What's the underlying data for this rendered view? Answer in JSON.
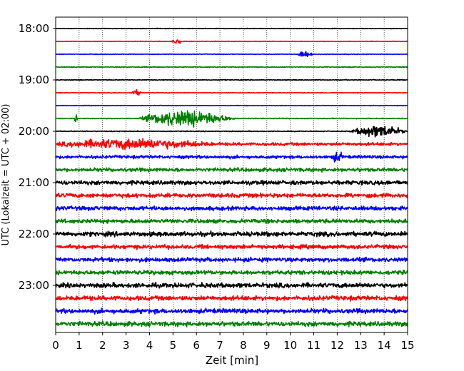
{
  "chart_data": {
    "type": "line",
    "title": "",
    "xlabel": "Zeit  [min]",
    "ylabel": "UTC (Lokalzeit = UTC + 02:00)",
    "xlim": [
      0,
      15
    ],
    "x_ticks": [
      "0",
      "1",
      "2",
      "3",
      "4",
      "5",
      "6",
      "7",
      "8",
      "9",
      "10",
      "11",
      "12",
      "13",
      "14",
      "15"
    ],
    "y_ticks": [
      "18:00",
      "19:00",
      "20:00",
      "21:00",
      "22:00",
      "23:00"
    ],
    "y_tick_rows": [
      0,
      4,
      8,
      12,
      16,
      20
    ],
    "grid": "vertical dotted at each minute",
    "legend": "none",
    "row_minutes": 15,
    "trace_colors": [
      "#000000",
      "#ff0000",
      "#0000ff",
      "#008000"
    ],
    "series": [
      {
        "start": "18:00",
        "color": "#000000",
        "noise": 0.6,
        "events": []
      },
      {
        "start": "18:15",
        "color": "#ff0000",
        "noise": 0.6,
        "events": [
          {
            "t": 4.9,
            "amp": 5,
            "dur": 0.5
          }
        ]
      },
      {
        "start": "18:30",
        "color": "#0000ff",
        "noise": 0.6,
        "events": [
          {
            "t": 10.3,
            "amp": 8,
            "dur": 0.7
          }
        ]
      },
      {
        "start": "18:45",
        "color": "#008000",
        "noise": 0.8,
        "events": []
      },
      {
        "start": "19:00",
        "color": "#000000",
        "noise": 0.8,
        "events": []
      },
      {
        "start": "19:15",
        "color": "#ff0000",
        "noise": 0.6,
        "events": [
          {
            "t": 3.2,
            "amp": 5,
            "dur": 0.5
          }
        ]
      },
      {
        "start": "19:30",
        "color": "#0000ff",
        "noise": 0.6,
        "events": []
      },
      {
        "start": "19:45",
        "color": "#008000",
        "noise": 0.8,
        "events": [
          {
            "t": 0.8,
            "amp": 11,
            "dur": 0.15
          },
          {
            "t": 3.5,
            "amp": 18,
            "dur": 5.5
          }
        ]
      },
      {
        "start": "20:00",
        "color": "#000000",
        "noise": 0.8,
        "events": [
          {
            "t": 12.5,
            "amp": 11,
            "dur": 2.5
          }
        ]
      },
      {
        "start": "20:15",
        "color": "#ff0000",
        "noise": 3,
        "events": [
          {
            "t": 0,
            "amp": 9,
            "dur": 9
          }
        ]
      },
      {
        "start": "20:30",
        "color": "#0000ff",
        "noise": 3,
        "events": [
          {
            "t": 11.7,
            "amp": 7,
            "dur": 0.6
          }
        ]
      },
      {
        "start": "20:45",
        "color": "#008000",
        "noise": 3.5,
        "events": []
      },
      {
        "start": "21:00",
        "color": "#000000",
        "noise": 4,
        "events": []
      },
      {
        "start": "21:15",
        "color": "#ff0000",
        "noise": 4,
        "events": []
      },
      {
        "start": "21:30",
        "color": "#0000ff",
        "noise": 4,
        "events": []
      },
      {
        "start": "21:45",
        "color": "#008000",
        "noise": 4,
        "events": []
      },
      {
        "start": "22:00",
        "color": "#000000",
        "noise": 4.5,
        "events": []
      },
      {
        "start": "22:15",
        "color": "#ff0000",
        "noise": 4,
        "events": []
      },
      {
        "start": "22:30",
        "color": "#0000ff",
        "noise": 4,
        "events": []
      },
      {
        "start": "22:45",
        "color": "#008000",
        "noise": 4,
        "events": []
      },
      {
        "start": "23:00",
        "color": "#000000",
        "noise": 4.5,
        "events": []
      },
      {
        "start": "23:15",
        "color": "#ff0000",
        "noise": 4.5,
        "events": []
      },
      {
        "start": "23:30",
        "color": "#0000ff",
        "noise": 4.5,
        "events": []
      },
      {
        "start": "23:45",
        "color": "#008000",
        "noise": 4.5,
        "events": []
      }
    ]
  }
}
